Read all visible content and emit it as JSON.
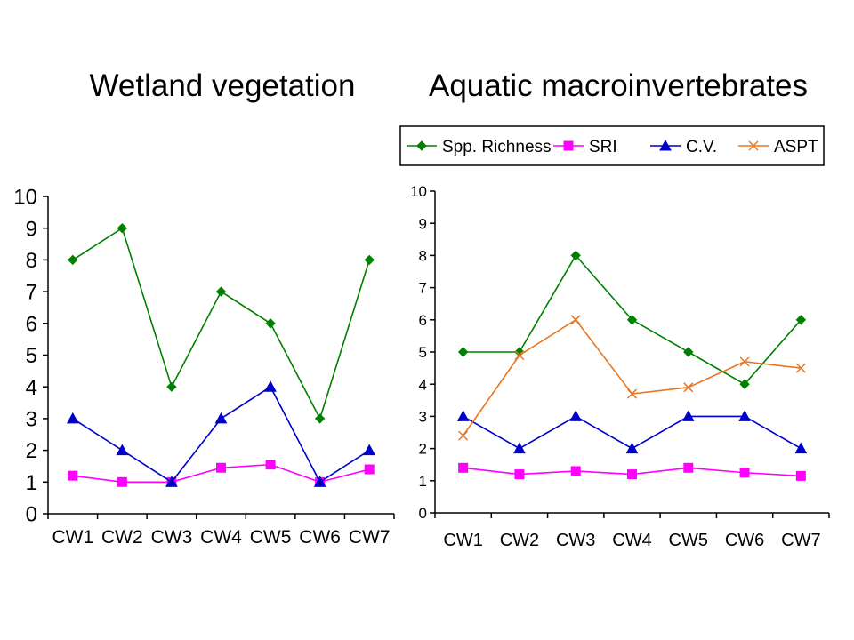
{
  "chart_data": [
    {
      "type": "line",
      "title": "Wetland vegetation",
      "categories": [
        "CW1",
        "CW2",
        "CW3",
        "CW4",
        "CW5",
        "CW6",
        "CW7"
      ],
      "ylim": [
        0,
        10
      ],
      "yticks": [
        0,
        1,
        2,
        3,
        4,
        5,
        6,
        7,
        8,
        9,
        10
      ],
      "grid": false,
      "legend": "none",
      "series": [
        {
          "name": "Spp. Richness",
          "color": "#008000",
          "marker": "diamond",
          "values": [
            8,
            9,
            4,
            7,
            6,
            3,
            8
          ]
        },
        {
          "name": "SRI",
          "color": "#FF00FF",
          "marker": "square",
          "values": [
            1.2,
            1.0,
            1.0,
            1.45,
            1.55,
            1.0,
            1.4
          ]
        },
        {
          "name": "C.V.",
          "color": "#0000CC",
          "marker": "triangle",
          "values": [
            3,
            2,
            1,
            3,
            4,
            1,
            2
          ]
        }
      ]
    },
    {
      "type": "line",
      "title": "Aquatic macroinvertebrates",
      "categories": [
        "CW1",
        "CW2",
        "CW3",
        "CW4",
        "CW5",
        "CW6",
        "CW7"
      ],
      "ylim": [
        0,
        10
      ],
      "yticks": [
        0,
        1,
        2,
        3,
        4,
        5,
        6,
        7,
        8,
        9,
        10
      ],
      "grid": false,
      "legend": "top",
      "series": [
        {
          "name": "Spp. Richness",
          "color": "#008000",
          "marker": "diamond",
          "values": [
            5,
            5,
            8,
            6,
            5,
            4,
            6
          ]
        },
        {
          "name": "SRI",
          "color": "#FF00FF",
          "marker": "square",
          "values": [
            1.4,
            1.2,
            1.3,
            1.2,
            1.4,
            1.25,
            1.15
          ]
        },
        {
          "name": "C.V.",
          "color": "#0000CC",
          "marker": "triangle",
          "values": [
            3,
            2,
            3,
            2,
            3,
            3,
            2
          ]
        },
        {
          "name": "ASPT",
          "color": "#E87722",
          "marker": "x",
          "values": [
            2.4,
            4.9,
            6.0,
            3.7,
            3.9,
            4.7,
            4.5
          ]
        }
      ]
    }
  ]
}
